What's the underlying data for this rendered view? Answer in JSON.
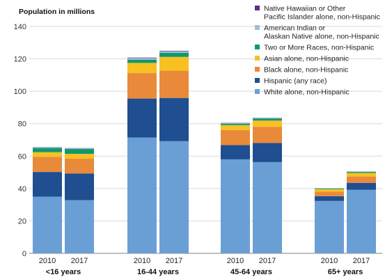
{
  "chart_data": {
    "type": "bar",
    "stacked": true,
    "ylabel": "Population in millions",
    "ylim": [
      0,
      140
    ],
    "yticks": [
      0,
      20,
      40,
      60,
      80,
      100,
      120,
      140
    ],
    "grid": true,
    "legend_position": "top-right",
    "groups": [
      {
        "label": "<16 years",
        "years": [
          "2010",
          "2017"
        ]
      },
      {
        "label": "16-44 years",
        "years": [
          "2010",
          "2017"
        ]
      },
      {
        "label": "45-64 years",
        "years": [
          "2010",
          "2017"
        ]
      },
      {
        "label": "65+ years",
        "years": [
          "2010",
          "2017"
        ]
      }
    ],
    "categories": [
      "2010",
      "2017",
      "2010",
      "2017",
      "2010",
      "2017",
      "2010",
      "2017"
    ],
    "series": [
      {
        "name": "White alone, non-Hispanic",
        "color": "#6a9fd6",
        "values": [
          35,
          32.8,
          71.5,
          69.2,
          58,
          56.3,
          32.3,
          39.2
        ]
      },
      {
        "name": "Hispanic (any race)",
        "color": "#1f4e91",
        "values": [
          15.2,
          16.5,
          24,
          26.7,
          8.8,
          11.8,
          3,
          4.3
        ]
      },
      {
        "name": "Black alone, non-Hispanic",
        "color": "#e98a3a",
        "values": [
          9.3,
          9.1,
          15.7,
          16.8,
          9.3,
          10,
          2.8,
          3.9
        ]
      },
      {
        "name": "Asian alone, non-Hispanic",
        "color": "#f8c021",
        "values": [
          2.9,
          3,
          6.3,
          8.5,
          3,
          3.8,
          1.5,
          2.2
        ]
      },
      {
        "name": "Two or More Races, non-Hispanic",
        "color": "#10986d",
        "values": [
          2.6,
          3,
          2,
          2.5,
          0.9,
          1.2,
          0.4,
          0.6
        ]
      },
      {
        "name": "American Indian or Alaskan Native alone, non-Hispanic",
        "color": "#9fbfd4",
        "values": [
          0.5,
          0.5,
          1,
          1,
          0.5,
          0.5,
          0.2,
          0.3
        ]
      },
      {
        "name": "Native Hawaiian or Other Pacific Islander alone, non-Hispanic",
        "color": "#5e2d84",
        "values": [
          0.1,
          0.1,
          0.3,
          0.3,
          0.1,
          0.1,
          0.05,
          0.05
        ]
      }
    ]
  },
  "legend": [
    {
      "color": "#5e2d84",
      "lines": [
        "Native Hawaiian or Other",
        "Pacific Islander alone, non-Hispanic"
      ]
    },
    {
      "color": "#9fbfd4",
      "lines": [
        "American Indian or",
        "Alaskan Native alone, non-Hispanic"
      ]
    },
    {
      "color": "#10986d",
      "lines": [
        "Two or More Races, non-Hispanic"
      ]
    },
    {
      "color": "#f8c021",
      "lines": [
        "Asian alone, non-Hispanic"
      ]
    },
    {
      "color": "#e98a3a",
      "lines": [
        "Black alone, non-Hispanic"
      ]
    },
    {
      "color": "#1f4e91",
      "lines": [
        "Hispanic (any race)"
      ]
    },
    {
      "color": "#6a9fd6",
      "lines": [
        "White alone, non-Hispanic"
      ]
    }
  ]
}
